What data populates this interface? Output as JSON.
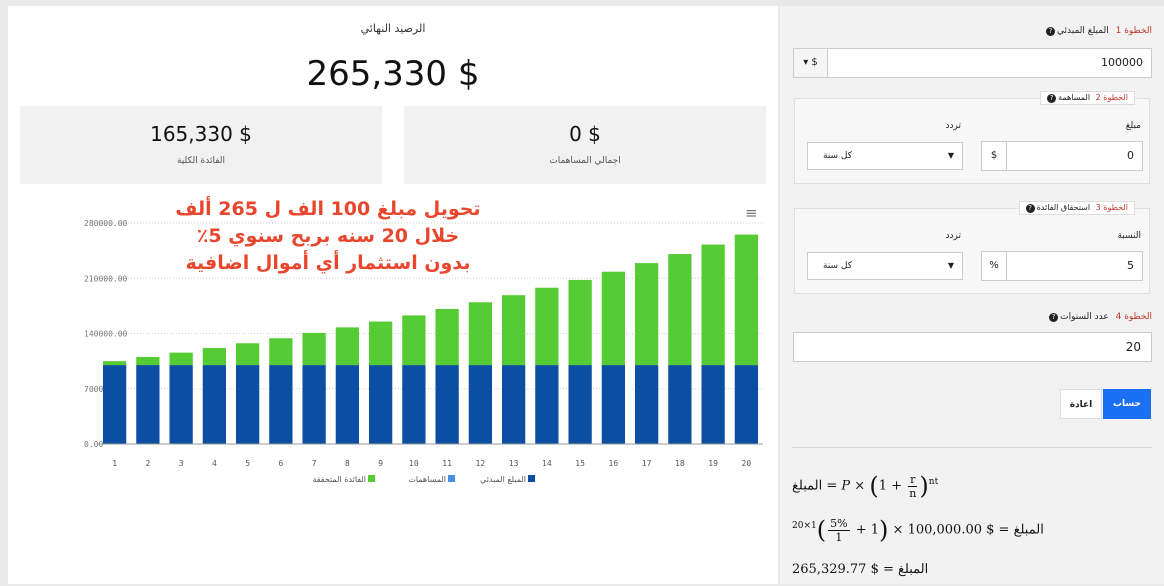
{
  "summary": {
    "final_balance_label": "الرصيد النهائي",
    "final_balance_value": "265,330 $",
    "total_interest_value": "165,330 $",
    "total_interest_label": "الفائدة الكلية",
    "total_contrib_value": "0 $",
    "total_contrib_label": "اجمالي المساهمات"
  },
  "overlay": {
    "line1": "تحويل مبلغ 100 الف ل 265 ألف",
    "line2": "خلال 20 سنه بربح سنوي 5٪",
    "line3": "بدون استثمار أي أموال اضافية"
  },
  "chart_data": {
    "type": "bar",
    "stacked": true,
    "categories": [
      "1",
      "2",
      "3",
      "4",
      "5",
      "6",
      "7",
      "8",
      "9",
      "10",
      "11",
      "12",
      "13",
      "14",
      "15",
      "16",
      "17",
      "18",
      "19",
      "20"
    ],
    "series": [
      {
        "name": "المبلغ المبدئي",
        "color": "#0b4ea2",
        "values": [
          100000,
          100000,
          100000,
          100000,
          100000,
          100000,
          100000,
          100000,
          100000,
          100000,
          100000,
          100000,
          100000,
          100000,
          100000,
          100000,
          100000,
          100000,
          100000,
          100000
        ]
      },
      {
        "name": "المساهمات",
        "color": "#4a90e2",
        "values": [
          0,
          0,
          0,
          0,
          0,
          0,
          0,
          0,
          0,
          0,
          0,
          0,
          0,
          0,
          0,
          0,
          0,
          0,
          0,
          0
        ]
      },
      {
        "name": "الفائدة المتحققة",
        "color": "#55cc33",
        "values": [
          5000,
          10250,
          15763,
          21551,
          27628,
          34010,
          40710,
          47746,
          55133,
          62889,
          71034,
          79586,
          88565,
          97993,
          107893,
          118287,
          129202,
          140662,
          152695,
          165330
        ]
      }
    ],
    "yticks": [
      "0.00",
      "70000.00",
      "140000.00",
      "210000.00",
      "280000.00"
    ],
    "ylim": [
      0,
      280000
    ],
    "grid": true,
    "legend": "bottom"
  },
  "form": {
    "step1": {
      "step": "الخطوة 1",
      "label": "المبلغ المبدئي",
      "currency": "$",
      "value": "100000"
    },
    "step2": {
      "step": "الخطوة 2",
      "label": "المساهمة",
      "amount_label": "مبلغ",
      "freq_label": "تردد",
      "unit": "$",
      "value": "0",
      "freq": "كل سنة"
    },
    "step3": {
      "step": "الخطوة 3",
      "label": "استحقاق الفائدة",
      "rate_label": "النسبة",
      "freq_label": "تردد",
      "unit": "%",
      "value": "5",
      "freq": "كل سنة"
    },
    "step4": {
      "step": "الخطوة 4",
      "label": "عدد السنوات",
      "value": "20"
    },
    "calc_button": "حساب",
    "reset_button": "اعادة"
  },
  "formulas": {
    "lhs": "المبلغ",
    "f1_pre": "P ×",
    "f1_r": "r",
    "f1_n": "n",
    "f1_exp": "nt",
    "f2_pre": "$ 100,000.00 ×",
    "f2_r": "5%",
    "f2_n": "1",
    "f2_exp": "1×20",
    "f3_value": "$ 265,329.77"
  }
}
